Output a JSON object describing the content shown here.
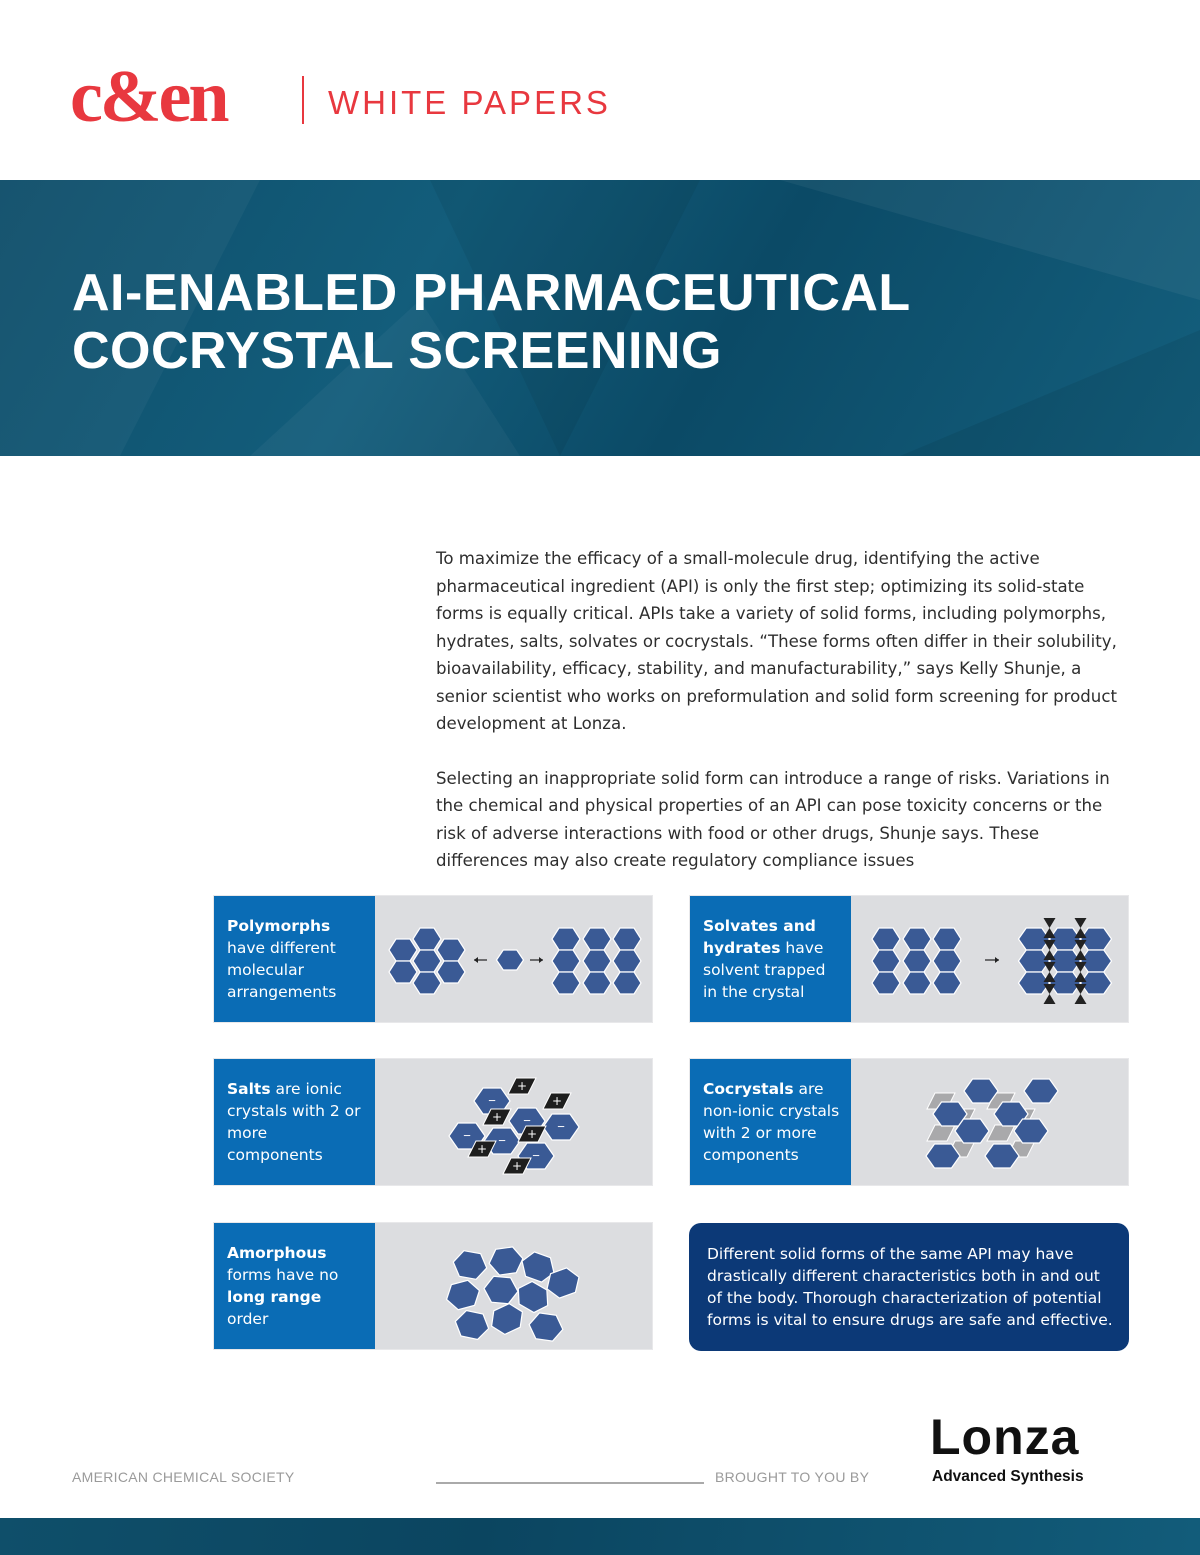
{
  "header": {
    "logo": "c&en",
    "section": "WHITE PAPERS"
  },
  "banner": {
    "title_line1": "AI-ENABLED PHARMACEUTICAL",
    "title_line2": "COCRYSTAL SCREENING"
  },
  "body": {
    "paragraphs": [
      "To maximize the efficacy of a small-molecule drug, identifying the active pharmaceutical ingredient (API) is only the first step; optimizing its solid-state forms is equally critical. APIs take a variety of solid forms, including polymorphs, hydrates, salts, solvates or cocrystals. “These forms often differ in their solubility, bioavailability, efficacy, stability, and manufacturability,” says Kelly Shunje, a senior scientist who works on preformulation and solid form screening for product development at Lonza.",
      "Selecting an inappropriate solid form can introduce a range of risks. Variations in the chemical and physical properties of an API can pose toxicity concerns or the risk of adverse interactions with food or other drugs, Shunje says. These differences may also create regulatory compliance issues"
    ]
  },
  "figure": {
    "polymorphs": {
      "bold": "Polymorphs",
      "rest": " have different molecular arrangements"
    },
    "solvates": {
      "bold": "Solvates and hydrates",
      "rest": " have solvent trapped in the crystal"
    },
    "salts": {
      "bold": "Salts",
      "rest": " are ionic crystals with 2 or more components"
    },
    "cocrystals": {
      "bold": "Cocrystals",
      "rest": " are non-ionic crystals with 2 or more components"
    },
    "amorphous": {
      "bold1": "Amorphous",
      "mid": " forms have no ",
      "bold2": "long range",
      "rest": " order"
    },
    "note": "Different solid forms of the same API may have drastically different characteristics both in and out of the body. Thorough characterization of potential forms is vital to ensure drugs are safe and effective.",
    "colors": {
      "label_blue": "#0a6cb5",
      "hex_blue": "#3a5a95",
      "panel_gray": "#dcdde0",
      "note_navy": "#0c3977"
    }
  },
  "footer": {
    "publisher": "AMERICAN CHEMICAL SOCIETY",
    "brought_by": "BROUGHT TO YOU BY",
    "sponsor_logo": "Lonza",
    "sponsor_sub": "Advanced Synthesis"
  }
}
